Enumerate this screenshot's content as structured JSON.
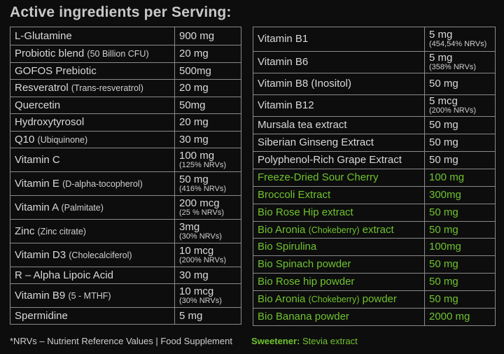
{
  "title": "Active ingredients per Serving:",
  "left_rows": [
    {
      "name": "L-Glutamine",
      "note": "",
      "qty": "900 mg",
      "sub": ""
    },
    {
      "name": "Probiotic blend",
      "note": "(50 Billion CFU)",
      "qty": "20 mg",
      "sub": ""
    },
    {
      "name": "GOFOS Prebiotic",
      "note": "",
      "qty": "500mg",
      "sub": ""
    },
    {
      "name": "Resveratrol",
      "note": "(Trans-resveratrol)",
      "qty": "20 mg",
      "sub": ""
    },
    {
      "name": "Quercetin",
      "note": "",
      "qty": "50mg",
      "sub": ""
    },
    {
      "name": "Hydroxytyrosol",
      "note": "",
      "qty": "20 mg",
      "sub": ""
    },
    {
      "name": "Q10",
      "note": "(Ubiquinone)",
      "qty": "30 mg",
      "sub": ""
    },
    {
      "name": "Vitamin C",
      "note": "",
      "qty": "100 mg",
      "sub": "(125% NRVs)"
    },
    {
      "name": "Vitamin E",
      "note": "(D-alpha-tocopherol)",
      "qty": "50 mg",
      "sub": "(416% NRVs)"
    },
    {
      "name": "Vitamin A",
      "note": "(Palmitate)",
      "qty": "200 mcg",
      "sub": "(25 % NRVs)"
    },
    {
      "name": "Zinc",
      "note": "(Zinc citrate)",
      "qty": "3mg",
      "sub": "(30% NRVs)"
    },
    {
      "name": "Vitamin D3",
      "note": "(Cholecalciferol)",
      "qty": "10 mcg",
      "sub": "(200% NRVs)"
    },
    {
      "name": "R – Alpha Lipoic Acid",
      "note": "",
      "qty": "30 mg",
      "sub": ""
    },
    {
      "name": "Vitamin B9",
      "note": "(5 - MTHF)",
      "qty": "10 mcg",
      "sub": "(30% NRVs)"
    },
    {
      "name": "Spermidine",
      "note": "",
      "qty": "5 mg",
      "sub": ""
    }
  ],
  "right_rows": [
    {
      "name": "Vitamin B1",
      "note": "",
      "qty": "5 mg",
      "sub": "(454,54% NRVs)",
      "green": false
    },
    {
      "name": "Vitamin B6",
      "note": "",
      "qty": "5 mg",
      "sub": "(358% NRVs)",
      "green": false
    },
    {
      "name": "Vitamin B8 (Inositol)",
      "note": "",
      "qty": "50 mg",
      "sub": "",
      "green": false
    },
    {
      "name": "Vitamin B12",
      "note": "",
      "qty": "5 mcg",
      "sub": "(200% NRVs)",
      "green": false
    },
    {
      "name": "Mursala tea extract",
      "note": "",
      "qty": "50 mg",
      "sub": "",
      "green": false
    },
    {
      "name": "Siberian Ginseng Extract",
      "note": "",
      "qty": "50 mg",
      "sub": "",
      "green": false
    },
    {
      "name": "Polyphenol-Rich Grape Extract",
      "note": "",
      "qty": "50 mg",
      "sub": "",
      "green": false
    },
    {
      "name": "Freeze-Dried Sour Cherry",
      "note": "",
      "qty": "100 mg",
      "sub": "",
      "green": true
    },
    {
      "name": "Broccoli Extract",
      "note": "",
      "qty": "300mg",
      "sub": "",
      "green": true
    },
    {
      "name": "Bio Rose Hip extract",
      "note": "",
      "qty": "50 mg",
      "sub": "",
      "green": true
    },
    {
      "name": "Bio Aronia",
      "note": "(Chokeberry)",
      "tail": "extract",
      "qty": "50 mg",
      "sub": "",
      "green": true
    },
    {
      "name": "Bio Spirulina",
      "note": "",
      "qty": "100mg",
      "sub": "",
      "green": true
    },
    {
      "name": "Bio Spinach powder",
      "note": "",
      "qty": "50 mg",
      "sub": "",
      "green": true
    },
    {
      "name": "Bio Rose hip powder",
      "note": "",
      "qty": "50 mg",
      "sub": "",
      "green": true
    },
    {
      "name": "Bio Aronia",
      "note": "(Chokeberry)",
      "tail": "powder",
      "qty": "50 mg",
      "sub": "",
      "green": true
    },
    {
      "name": "Bio Banana powder",
      "note": "",
      "qty": "2000 mg",
      "sub": "",
      "green": true
    }
  ],
  "footer": "*NRVs – Nutrient Reference Values  |  Food Supplement",
  "sweetener_label": "Sweetener:",
  "sweetener_value": "Stevia extract",
  "colors": {
    "background": "#0d0d0d",
    "text": "#d9d9d9",
    "accent_green": "#6fc32e",
    "border": "#8a8a8a"
  }
}
